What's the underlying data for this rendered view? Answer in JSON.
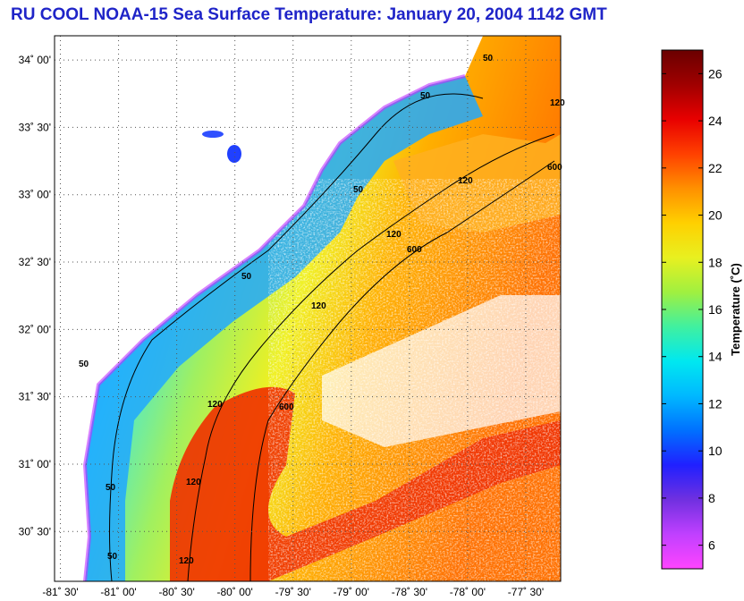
{
  "title": "RU COOL  NOAA-15  Sea Surface Temperature:  January 20, 2004 1142 GMT",
  "map": {
    "lat_labels": [
      "34˚ 00'",
      "33˚ 30'",
      "33˚ 00'",
      "32˚ 30'",
      "32˚ 00'",
      "31˚ 30'",
      "31˚ 00'",
      "30˚ 30'"
    ],
    "lat_values": [
      34.0,
      33.5,
      33.0,
      32.5,
      32.0,
      31.5,
      31.0,
      30.5
    ],
    "lon_labels": [
      "-81˚ 30'",
      "-81˚ 00'",
      "-80˚ 30'",
      "-80˚ 00'",
      "-79˚ 30'",
      "-79˚ 00'",
      "-78˚ 30'",
      "-78˚ 00'",
      "-77˚ 30'"
    ],
    "lon_values": [
      -81.5,
      -81.0,
      -80.5,
      -80.0,
      -79.5,
      -79.0,
      -78.5,
      -78.0,
      -77.5
    ],
    "lat_range": [
      30.13,
      34.18
    ],
    "lon_range": [
      -81.55,
      -77.2
    ],
    "contour_labels": [
      "50",
      "50",
      "50",
      "50",
      "50",
      "50",
      "50",
      "120",
      "120",
      "120",
      "120",
      "120",
      "120",
      "120",
      "600",
      "600",
      "600"
    ]
  },
  "colorbar": {
    "label": "Temperature (˚C)",
    "ticks": [
      "26",
      "24",
      "22",
      "20",
      "18",
      "16",
      "14",
      "12",
      "10",
      "8",
      "6"
    ],
    "tick_values": [
      26,
      24,
      22,
      20,
      18,
      16,
      14,
      12,
      10,
      8,
      6
    ],
    "range": [
      5,
      27
    ],
    "colors": [
      "#ff44ff",
      "#c040ff",
      "#7030e0",
      "#2020ff",
      "#0070ff",
      "#00b8ff",
      "#00e8f0",
      "#40f0a0",
      "#a0f040",
      "#e8f020",
      "#ffd000",
      "#ff9000",
      "#ff4000",
      "#e80000",
      "#a00000",
      "#6a0000"
    ]
  }
}
